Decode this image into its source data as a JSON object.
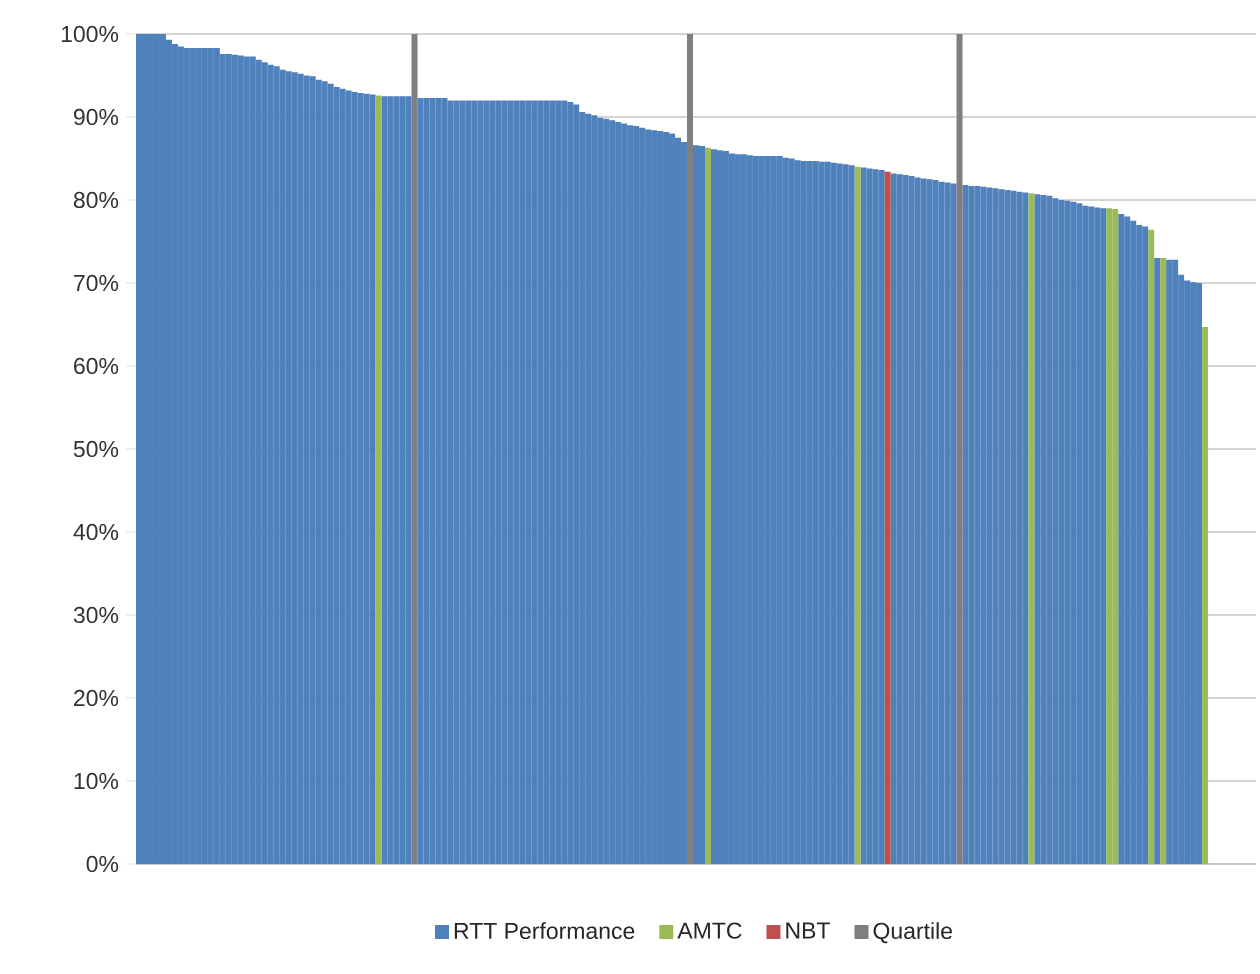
{
  "chart_data": {
    "type": "bar",
    "categories": [
      null,
      null,
      null,
      null,
      null,
      null,
      null,
      null,
      null,
      null,
      null,
      null,
      null,
      null,
      null,
      null,
      null,
      null,
      null,
      null,
      null,
      null,
      null,
      null,
      null,
      null,
      null,
      null,
      null,
      null,
      null,
      null,
      null,
      null,
      null,
      null,
      null,
      null,
      null,
      null,
      null,
      null,
      null,
      null,
      null,
      null,
      null,
      null,
      null,
      null,
      null,
      null,
      null,
      null,
      null,
      null,
      null,
      null,
      null,
      null,
      null,
      null,
      null,
      null,
      null,
      null,
      null,
      null,
      null,
      null,
      null,
      null,
      null,
      null,
      null,
      null,
      null,
      null,
      null,
      null,
      null,
      null,
      null,
      null,
      null,
      null,
      null,
      null,
      null,
      null,
      null,
      null,
      null,
      null,
      null,
      null,
      null,
      null,
      null,
      null,
      null,
      null,
      null,
      null,
      null,
      null,
      null,
      null,
      null,
      null,
      null,
      null,
      null,
      null,
      null,
      null,
      null,
      null,
      null,
      null,
      null,
      null,
      null,
      null,
      null,
      null,
      null,
      null,
      null,
      null,
      null,
      null,
      null,
      null,
      null,
      null,
      null,
      null,
      null,
      null,
      null,
      null,
      null,
      null,
      null,
      null,
      null,
      null,
      null,
      null,
      null,
      null,
      null,
      null,
      null,
      null,
      null,
      null,
      null,
      null,
      null,
      null,
      null,
      null,
      null,
      null,
      null,
      null,
      null,
      null,
      null,
      null,
      null,
      null,
      null,
      null,
      null,
      null,
      null,
      null,
      null,
      null,
      null,
      null,
      null,
      null,
      null
    ],
    "series": [
      {
        "name": "RTT Performance",
        "color": "#4f81bd",
        "values": [
          100,
          100,
          100,
          100,
          100,
          99.3,
          98.8,
          98.5,
          98.3,
          98.3,
          98.3,
          98.3,
          98.3,
          98.3,
          97.6,
          97.6,
          97.5,
          97.4,
          97.3,
          97.3,
          96.9,
          96.6,
          96.3,
          96.1,
          95.7,
          95.5,
          95.4,
          95.2,
          95.0,
          94.9,
          94.5,
          94.3,
          94.0,
          93.6,
          93.4,
          93.2,
          93.0,
          92.9,
          92.8,
          92.7,
          null,
          92.5,
          92.5,
          92.5,
          92.5,
          92.5,
          null,
          92.3,
          92.3,
          92.3,
          92.3,
          92.3,
          92.0,
          92.0,
          92.0,
          92.0,
          92.0,
          92.0,
          92.0,
          92.0,
          92.0,
          92.0,
          92.0,
          92.0,
          92.0,
          92.0,
          92.0,
          92.0,
          92.0,
          92.0,
          92.0,
          92.0,
          91.8,
          91.5,
          90.6,
          90.4,
          90.2,
          89.9,
          89.8,
          89.6,
          89.4,
          89.2,
          89.0,
          88.9,
          88.7,
          88.5,
          88.4,
          88.3,
          88.2,
          88.0,
          87.5,
          87.0,
          null,
          86.6,
          86.5,
          null,
          86.1,
          86.0,
          85.9,
          85.6,
          85.5,
          85.5,
          85.4,
          85.3,
          85.3,
          85.3,
          85.3,
          85.3,
          85.1,
          85.0,
          84.8,
          84.7,
          84.7,
          84.7,
          84.6,
          84.6,
          84.5,
          84.4,
          84.3,
          84.2,
          null,
          83.9,
          83.8,
          83.7,
          83.6,
          null,
          83.2,
          83.1,
          83.0,
          82.9,
          82.7,
          82.6,
          82.5,
          82.4,
          82.2,
          82.1,
          82.0,
          null,
          81.8,
          81.7,
          81.7,
          81.6,
          81.5,
          81.4,
          81.3,
          81.2,
          81.1,
          81.0,
          80.9,
          null,
          80.7,
          80.6,
          80.5,
          80.2,
          80.0,
          79.9,
          79.8,
          79.6,
          79.3,
          79.2,
          79.1,
          79.0,
          null,
          null,
          78.3,
          78.0,
          77.5,
          77.0,
          76.8,
          null,
          73.0,
          null,
          72.8,
          72.8,
          71.0,
          70.3,
          70.1,
          70.0,
          null,
          null,
          null,
          null,
          null,
          null,
          null,
          null,
          null
        ]
      },
      {
        "name": "AMTC",
        "color": "#9bbb59",
        "values": [
          null,
          null,
          null,
          null,
          null,
          null,
          null,
          null,
          null,
          null,
          null,
          null,
          null,
          null,
          null,
          null,
          null,
          null,
          null,
          null,
          null,
          null,
          null,
          null,
          null,
          null,
          null,
          null,
          null,
          null,
          null,
          null,
          null,
          null,
          null,
          null,
          null,
          null,
          null,
          null,
          92.6,
          null,
          null,
          null,
          null,
          null,
          null,
          null,
          null,
          null,
          null,
          null,
          null,
          null,
          null,
          null,
          null,
          null,
          null,
          null,
          null,
          null,
          null,
          null,
          null,
          null,
          null,
          null,
          null,
          null,
          null,
          null,
          null,
          null,
          null,
          null,
          null,
          null,
          null,
          null,
          null,
          null,
          null,
          null,
          null,
          null,
          null,
          null,
          null,
          null,
          null,
          null,
          null,
          null,
          null,
          86.3,
          null,
          null,
          null,
          null,
          null,
          null,
          null,
          null,
          null,
          null,
          null,
          null,
          null,
          null,
          null,
          null,
          null,
          null,
          null,
          null,
          null,
          null,
          null,
          null,
          84.0,
          null,
          null,
          null,
          null,
          null,
          null,
          null,
          null,
          null,
          null,
          null,
          null,
          null,
          null,
          null,
          null,
          null,
          null,
          null,
          null,
          null,
          null,
          null,
          null,
          null,
          null,
          null,
          null,
          80.8,
          null,
          null,
          null,
          null,
          null,
          null,
          null,
          null,
          null,
          null,
          null,
          null,
          79.0,
          78.9,
          null,
          null,
          null,
          null,
          null,
          76.4,
          null,
          73.0,
          null,
          null,
          null,
          null,
          null,
          null,
          64.7,
          null,
          null,
          null,
          null,
          null,
          null,
          null,
          null
        ]
      },
      {
        "name": "NBT",
        "color": "#c0504d",
        "values": [
          null,
          null,
          null,
          null,
          null,
          null,
          null,
          null,
          null,
          null,
          null,
          null,
          null,
          null,
          null,
          null,
          null,
          null,
          null,
          null,
          null,
          null,
          null,
          null,
          null,
          null,
          null,
          null,
          null,
          null,
          null,
          null,
          null,
          null,
          null,
          null,
          null,
          null,
          null,
          null,
          null,
          null,
          null,
          null,
          null,
          null,
          null,
          null,
          null,
          null,
          null,
          null,
          null,
          null,
          null,
          null,
          null,
          null,
          null,
          null,
          null,
          null,
          null,
          null,
          null,
          null,
          null,
          null,
          null,
          null,
          null,
          null,
          null,
          null,
          null,
          null,
          null,
          null,
          null,
          null,
          null,
          null,
          null,
          null,
          null,
          null,
          null,
          null,
          null,
          null,
          null,
          null,
          null,
          null,
          null,
          null,
          null,
          null,
          null,
          null,
          null,
          null,
          null,
          null,
          null,
          null,
          null,
          null,
          null,
          null,
          null,
          null,
          null,
          null,
          null,
          null,
          null,
          null,
          null,
          null,
          null,
          null,
          null,
          null,
          null,
          83.4,
          null,
          null,
          null,
          null,
          null,
          null,
          null,
          null,
          null,
          null,
          null,
          null,
          null,
          null,
          null,
          null,
          null,
          null,
          null,
          null,
          null,
          null,
          null,
          null,
          null,
          null,
          null,
          null,
          null,
          null,
          null,
          null,
          null,
          null,
          null,
          null,
          null,
          null,
          null,
          null,
          null,
          null,
          null,
          null,
          null,
          null,
          null,
          null,
          null,
          null,
          null,
          null,
          null,
          null,
          null,
          null,
          null,
          null,
          null,
          null,
          null
        ]
      },
      {
        "name": "Quartile",
        "color": "#7f7f7f",
        "values": [
          null,
          null,
          null,
          null,
          null,
          null,
          null,
          null,
          null,
          null,
          null,
          null,
          null,
          null,
          null,
          null,
          null,
          null,
          null,
          null,
          null,
          null,
          null,
          null,
          null,
          null,
          null,
          null,
          null,
          null,
          null,
          null,
          null,
          null,
          null,
          null,
          null,
          null,
          null,
          null,
          null,
          null,
          null,
          null,
          null,
          null,
          100,
          null,
          null,
          null,
          null,
          null,
          null,
          null,
          null,
          null,
          null,
          null,
          null,
          null,
          null,
          null,
          null,
          null,
          null,
          null,
          null,
          null,
          null,
          null,
          null,
          null,
          null,
          null,
          null,
          null,
          null,
          null,
          null,
          null,
          null,
          null,
          null,
          null,
          null,
          null,
          null,
          null,
          null,
          null,
          null,
          null,
          100,
          null,
          null,
          null,
          null,
          null,
          null,
          null,
          null,
          null,
          null,
          null,
          null,
          null,
          null,
          null,
          null,
          null,
          null,
          null,
          null,
          null,
          null,
          null,
          null,
          null,
          null,
          null,
          null,
          null,
          null,
          null,
          null,
          null,
          null,
          null,
          null,
          null,
          null,
          null,
          null,
          null,
          null,
          null,
          null,
          100,
          null,
          null,
          null,
          null,
          null,
          null,
          null,
          null,
          null,
          null,
          null,
          null,
          null,
          null,
          null,
          null,
          null,
          null,
          null,
          null,
          null,
          null,
          null,
          null,
          null,
          null,
          null,
          null,
          null,
          null,
          null,
          null,
          null,
          null,
          null,
          null,
          null,
          null,
          null,
          null,
          null,
          null,
          null,
          null,
          null,
          null,
          null,
          null,
          null
        ]
      }
    ],
    "ylim": [
      0,
      100
    ],
    "yticks": [
      {
        "value": 0,
        "label": "0%"
      },
      {
        "value": 10,
        "label": "10%"
      },
      {
        "value": 20,
        "label": "20%"
      },
      {
        "value": 30,
        "label": "30%"
      },
      {
        "value": 40,
        "label": "40%"
      },
      {
        "value": 50,
        "label": "50%"
      },
      {
        "value": 60,
        "label": "60%"
      },
      {
        "value": 70,
        "label": "70%"
      },
      {
        "value": 80,
        "label": "80%"
      },
      {
        "value": 90,
        "label": "90%"
      },
      {
        "value": 100,
        "label": "100%"
      }
    ],
    "grid": "y",
    "legend": "bottom"
  }
}
